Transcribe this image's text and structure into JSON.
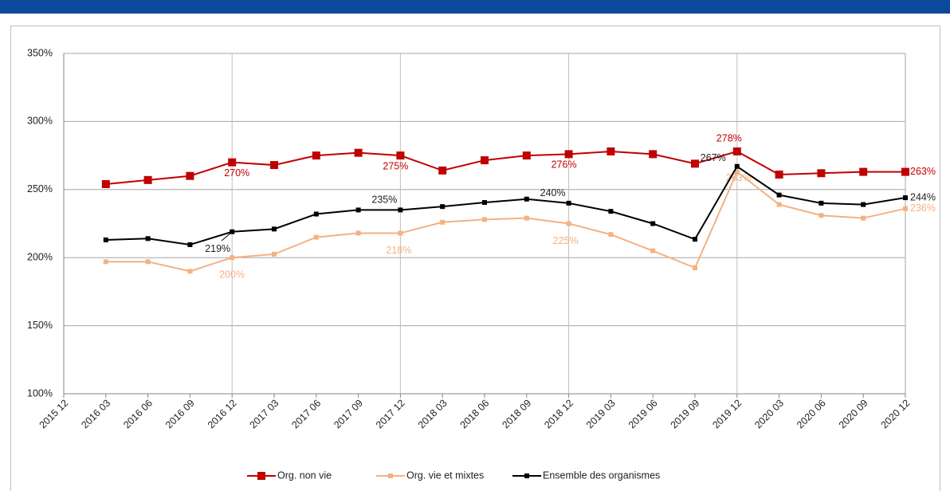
{
  "chart_data": {
    "type": "line",
    "categories": [
      "2015 12",
      "2016 03",
      "2016 06",
      "2016 09",
      "2016 12",
      "2017 03",
      "2017 06",
      "2017 09",
      "2017 12",
      "2018 03",
      "2018 06",
      "2018 09",
      "2018 12",
      "2019 03",
      "2019 06",
      "2019 09",
      "2019 12",
      "2020 03",
      "2020 06",
      "2020 09",
      "2020 12"
    ],
    "series": [
      {
        "name": "Org. non vie",
        "color": "#c00000",
        "values": [
          null,
          254,
          257,
          260,
          270,
          268,
          275,
          277,
          275,
          264,
          271.5,
          275,
          276,
          278,
          276,
          269,
          278,
          261,
          262,
          263,
          263
        ],
        "value_labels": [
          null,
          null,
          null,
          null,
          "270%",
          null,
          null,
          null,
          "275%",
          null,
          null,
          null,
          "276%",
          null,
          null,
          null,
          "278%",
          null,
          null,
          null,
          "263%"
        ]
      },
      {
        "name": "Org. vie et mixtes",
        "color": "#f4b183",
        "values": [
          null,
          197,
          197,
          190,
          200,
          202.5,
          215,
          218,
          218,
          226,
          228,
          229,
          225,
          217,
          205,
          192.5,
          263,
          239,
          231,
          229,
          236
        ],
        "value_labels": [
          null,
          null,
          null,
          null,
          "200%",
          null,
          null,
          null,
          "218%",
          null,
          null,
          null,
          "225%",
          null,
          null,
          null,
          "263%",
          null,
          null,
          null,
          "236%"
        ]
      },
      {
        "name": "Ensemble des organismes",
        "color": "#000000",
        "values": [
          null,
          213,
          214,
          209.5,
          219,
          221,
          232,
          235,
          235,
          237.5,
          240.5,
          243,
          240,
          234,
          225,
          213.5,
          267,
          246,
          240,
          239,
          244
        ],
        "value_labels": [
          null,
          null,
          null,
          null,
          "219%",
          null,
          null,
          null,
          "235%",
          null,
          null,
          null,
          "240%",
          null,
          null,
          null,
          "267%",
          null,
          null,
          null,
          "244%"
        ]
      }
    ],
    "ylim": [
      100,
      350
    ],
    "yticks": [
      {
        "value": 100,
        "label": "100%"
      },
      {
        "value": 150,
        "label": "150%"
      },
      {
        "value": 200,
        "label": "200%"
      },
      {
        "value": 250,
        "label": "250%"
      },
      {
        "value": 300,
        "label": "300%"
      },
      {
        "value": 350,
        "label": "350%"
      }
    ],
    "grid": true,
    "legend": "bottom"
  }
}
